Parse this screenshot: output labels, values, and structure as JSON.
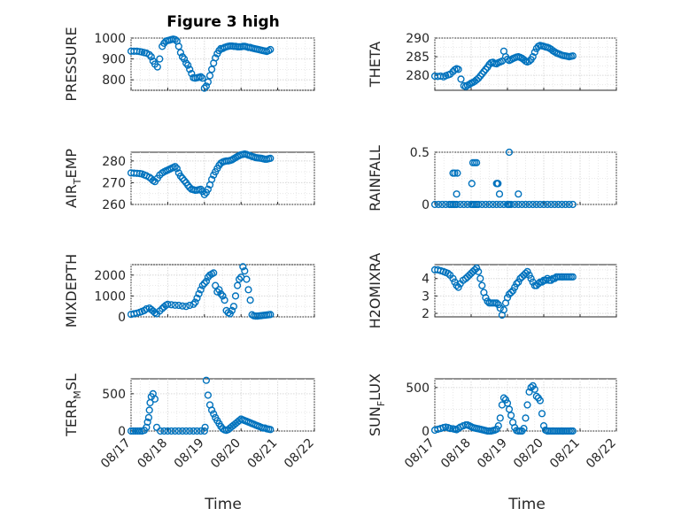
{
  "title": "Figure 3 high",
  "xlabel": "Time",
  "colors": {
    "marker": "#0072bd",
    "axis": "#262626",
    "grid": "#d9d9d9"
  },
  "chart_data": [
    {
      "id": "pressure",
      "type": "scatter",
      "title": "Figure 3 high",
      "ylabel": "PRESSURE",
      "ylim": [
        750,
        1000
      ],
      "yticks": [
        800,
        900,
        1000
      ],
      "xlim": [
        0,
        5
      ],
      "xticks": [
        "08/17",
        "08/18",
        "08/19",
        "08/20",
        "08/21",
        "08/22"
      ],
      "grid": true,
      "marker": "circle",
      "x": [
        0.0,
        0.08,
        0.16,
        0.24,
        0.3,
        0.36,
        0.42,
        0.5,
        0.55,
        0.6,
        0.65,
        0.72,
        0.78,
        0.85,
        0.9,
        0.95,
        1.0,
        1.05,
        1.1,
        1.15,
        1.2,
        1.25,
        1.3,
        1.35,
        1.4,
        1.45,
        1.5,
        1.55,
        1.6,
        1.65,
        1.7,
        1.75,
        1.8,
        1.85,
        1.9,
        1.95,
        2.0,
        2.05,
        2.1,
        2.15,
        2.2,
        2.25,
        2.3,
        2.35,
        2.4,
        2.45,
        2.5,
        2.55,
        2.6,
        2.65,
        2.7,
        2.75,
        2.8,
        2.85,
        2.9,
        2.95,
        3.0,
        3.05,
        3.1,
        3.15,
        3.2,
        3.25,
        3.3,
        3.35,
        3.4,
        3.45,
        3.5,
        3.55,
        3.6,
        3.65,
        3.7,
        3.75,
        3.8
      ],
      "y": [
        937,
        937,
        937,
        935,
        933,
        930,
        928,
        920,
        910,
        890,
        875,
        862,
        900,
        960,
        975,
        985,
        988,
        990,
        993,
        995,
        993,
        985,
        960,
        930,
        910,
        900,
        880,
        870,
        850,
        830,
        810,
        808,
        810,
        812,
        815,
        808,
        760,
        770,
        790,
        820,
        850,
        880,
        905,
        925,
        940,
        950,
        950,
        955,
        958,
        960,
        962,
        962,
        960,
        960,
        958,
        958,
        958,
        960,
        960,
        958,
        955,
        955,
        952,
        950,
        948,
        946,
        944,
        942,
        940,
        938,
        936,
        940,
        945
      ]
    },
    {
      "id": "theta",
      "type": "scatter",
      "ylabel": "THETA",
      "ylim": [
        276,
        290
      ],
      "yticks": [
        280,
        285,
        290
      ],
      "xlim": [
        0,
        5
      ],
      "xticks": [
        "08/17",
        "08/18",
        "08/19",
        "08/20",
        "08/21",
        "08/22"
      ],
      "grid": true,
      "marker": "circle",
      "x": [
        0.0,
        0.08,
        0.16,
        0.24,
        0.3,
        0.36,
        0.42,
        0.5,
        0.55,
        0.6,
        0.65,
        0.72,
        0.8,
        0.85,
        0.9,
        0.95,
        1.0,
        1.05,
        1.1,
        1.15,
        1.2,
        1.25,
        1.3,
        1.35,
        1.4,
        1.45,
        1.5,
        1.55,
        1.6,
        1.65,
        1.7,
        1.75,
        1.8,
        1.85,
        1.9,
        1.95,
        2.0,
        2.05,
        2.1,
        2.15,
        2.2,
        2.25,
        2.3,
        2.35,
        2.4,
        2.45,
        2.5,
        2.55,
        2.6,
        2.65,
        2.7,
        2.75,
        2.8,
        2.85,
        2.9,
        2.95,
        3.0,
        3.05,
        3.1,
        3.15,
        3.2,
        3.25,
        3.3,
        3.35,
        3.4,
        3.45,
        3.5,
        3.55,
        3.6,
        3.65,
        3.7,
        3.75,
        3.8
      ],
      "y": [
        279.8,
        279.7,
        279.8,
        279.6,
        279.9,
        280.1,
        280.3,
        281.0,
        281.5,
        281.8,
        281.6,
        279.0,
        277.2,
        277.0,
        277.3,
        277.6,
        277.9,
        278.1,
        278.4,
        278.8,
        279.2,
        279.8,
        280.4,
        281.0,
        281.6,
        282.2,
        282.9,
        283.4,
        283.5,
        283.2,
        283.1,
        283.4,
        283.6,
        283.8,
        286.5,
        285.0,
        284.3,
        284.0,
        284.2,
        284.5,
        284.7,
        284.9,
        285.0,
        284.8,
        284.6,
        284.2,
        283.8,
        283.6,
        283.8,
        284.2,
        285.0,
        286.2,
        287.2,
        287.8,
        288.0,
        287.9,
        287.8,
        287.6,
        287.5,
        287.3,
        287.0,
        286.6,
        286.3,
        286.0,
        285.8,
        285.6,
        285.4,
        285.3,
        285.2,
        285.1,
        285.0,
        285.1,
        285.2
      ]
    },
    {
      "id": "air_temp",
      "type": "scatter",
      "ylabel": "AIR_TEMP",
      "ylim": [
        260,
        284
      ],
      "yticks": [
        260,
        270,
        280
      ],
      "xlim": [
        0,
        5
      ],
      "xticks": [
        "08/17",
        "08/18",
        "08/19",
        "08/20",
        "08/21",
        "08/22"
      ],
      "grid": true,
      "marker": "circle",
      "x": [
        0.0,
        0.08,
        0.16,
        0.24,
        0.3,
        0.36,
        0.42,
        0.5,
        0.55,
        0.6,
        0.65,
        0.72,
        0.78,
        0.85,
        0.9,
        0.95,
        1.0,
        1.05,
        1.1,
        1.15,
        1.2,
        1.25,
        1.3,
        1.35,
        1.4,
        1.45,
        1.5,
        1.55,
        1.6,
        1.65,
        1.7,
        1.75,
        1.8,
        1.85,
        1.9,
        1.95,
        2.0,
        2.05,
        2.1,
        2.15,
        2.2,
        2.25,
        2.3,
        2.35,
        2.4,
        2.45,
        2.5,
        2.55,
        2.6,
        2.65,
        2.7,
        2.75,
        2.8,
        2.85,
        2.9,
        2.95,
        3.0,
        3.05,
        3.1,
        3.15,
        3.2,
        3.25,
        3.3,
        3.35,
        3.4,
        3.45,
        3.5,
        3.55,
        3.6,
        3.65,
        3.7,
        3.75,
        3.8
      ],
      "y": [
        274.5,
        274.4,
        274.3,
        274.2,
        274.0,
        273.6,
        273.2,
        272.5,
        271.8,
        271.0,
        270.5,
        272.0,
        273.5,
        274.5,
        275.0,
        275.4,
        275.8,
        276.2,
        276.6,
        277.0,
        277.4,
        276.5,
        274.5,
        273.0,
        272.0,
        271.0,
        270.0,
        268.8,
        267.8,
        267.0,
        266.8,
        266.5,
        266.6,
        266.8,
        267.0,
        266.0,
        264.5,
        265.5,
        267.0,
        269.0,
        271.5,
        273.5,
        275.0,
        276.5,
        278.0,
        279.0,
        279.5,
        279.8,
        280.0,
        280.0,
        280.2,
        280.5,
        281.0,
        281.5,
        282.0,
        282.4,
        282.8,
        283.0,
        283.2,
        283.0,
        282.6,
        282.4,
        282.0,
        281.8,
        281.5,
        281.4,
        281.3,
        281.2,
        281.0,
        280.8,
        280.8,
        281.0,
        281.2
      ]
    },
    {
      "id": "rainfall",
      "type": "scatter",
      "ylabel": "RAINFALL",
      "ylim": [
        0,
        0.5
      ],
      "yticks": [
        0,
        0.5
      ],
      "xlim": [
        0,
        5
      ],
      "xticks": [
        "08/17",
        "08/18",
        "08/19",
        "08/20",
        "08/21",
        "08/22"
      ],
      "grid": true,
      "marker": "circle",
      "x": [
        0.0,
        0.1,
        0.2,
        0.3,
        0.4,
        0.45,
        0.5,
        0.55,
        0.6,
        0.7,
        0.8,
        0.9,
        1.0,
        1.05,
        1.1,
        1.15,
        1.2,
        1.3,
        1.4,
        1.5,
        1.6,
        1.7,
        1.8,
        1.9,
        2.0,
        2.02,
        2.05,
        2.1,
        2.2,
        2.3,
        2.4,
        2.5,
        2.6,
        2.7,
        2.8,
        2.9,
        3.0,
        3.1,
        3.2,
        3.3,
        3.4,
        3.5,
        3.6,
        3.7,
        3.8,
        0.5,
        0.55,
        0.62,
        0.6,
        1.05,
        1.1,
        1.15,
        1.02,
        1.7,
        1.72,
        1.74,
        1.78,
        2.05,
        2.3
      ],
      "y": [
        0,
        0,
        0,
        0,
        0,
        0,
        0,
        0,
        0,
        0,
        0,
        0,
        0,
        0,
        0,
        0,
        0,
        0,
        0,
        0,
        0,
        0,
        0,
        0,
        0,
        0,
        0,
        0,
        0,
        0,
        0,
        0,
        0,
        0,
        0,
        0,
        0,
        0,
        0,
        0,
        0,
        0,
        0,
        0,
        0,
        0.3,
        0.3,
        0.3,
        0.1,
        0.4,
        0.4,
        0.4,
        0.2,
        0.2,
        0.2,
        0.2,
        0.1,
        0.5,
        0.1
      ]
    },
    {
      "id": "mixdepth",
      "type": "scatter",
      "ylabel": "MIXDEPTH",
      "ylim": [
        0,
        2500
      ],
      "yticks": [
        0,
        1000,
        2000
      ],
      "xlim": [
        0,
        5
      ],
      "xticks": [
        "08/17",
        "08/18",
        "08/19",
        "08/20",
        "08/21",
        "08/22"
      ],
      "grid": true,
      "marker": "circle",
      "x": [
        0.0,
        0.08,
        0.16,
        0.24,
        0.3,
        0.36,
        0.42,
        0.5,
        0.55,
        0.6,
        0.65,
        0.7,
        0.78,
        0.85,
        0.9,
        0.95,
        1.0,
        1.1,
        1.2,
        1.3,
        1.4,
        1.5,
        1.6,
        1.7,
        1.75,
        1.8,
        1.85,
        1.9,
        1.95,
        2.0,
        2.05,
        2.1,
        2.15,
        2.2,
        2.25,
        2.3,
        2.35,
        2.4,
        2.45,
        2.5,
        2.55,
        2.6,
        2.65,
        2.7,
        2.75,
        2.8,
        2.85,
        2.9,
        2.95,
        3.0,
        3.05,
        3.1,
        3.15,
        3.2,
        3.25,
        3.3,
        3.35,
        3.4,
        3.45,
        3.5,
        3.55,
        3.6,
        3.65,
        3.7,
        3.75,
        3.8
      ],
      "y": [
        120,
        150,
        180,
        220,
        260,
        300,
        380,
        420,
        350,
        280,
        200,
        150,
        280,
        400,
        480,
        550,
        600,
        580,
        560,
        550,
        520,
        500,
        550,
        600,
        700,
        900,
        1100,
        1300,
        1500,
        1600,
        1700,
        1900,
        2000,
        2050,
        2100,
        1500,
        1200,
        1300,
        1100,
        1000,
        800,
        300,
        200,
        150,
        300,
        500,
        1000,
        1500,
        1800,
        1900,
        2400,
        2200,
        1800,
        1300,
        800,
        100,
        50,
        40,
        40,
        50,
        60,
        70,
        80,
        90,
        100,
        110
      ]
    },
    {
      "id": "h2omixra",
      "type": "scatter",
      "ylabel": "H2OMIXRA",
      "ylim": [
        1.8,
        4.8
      ],
      "yticks": [
        2,
        3,
        4
      ],
      "xlim": [
        0,
        5
      ],
      "xticks": [
        "08/17",
        "08/18",
        "08/19",
        "08/20",
        "08/21",
        "08/22"
      ],
      "grid": true,
      "marker": "circle",
      "x": [
        0.0,
        0.08,
        0.16,
        0.24,
        0.3,
        0.36,
        0.42,
        0.5,
        0.55,
        0.6,
        0.65,
        0.7,
        0.78,
        0.85,
        0.9,
        0.95,
        1.0,
        1.05,
        1.1,
        1.15,
        1.2,
        1.25,
        1.3,
        1.35,
        1.4,
        1.45,
        1.5,
        1.55,
        1.6,
        1.65,
        1.7,
        1.75,
        1.8,
        1.85,
        1.9,
        1.95,
        2.0,
        2.05,
        2.1,
        2.15,
        2.2,
        2.25,
        2.3,
        2.35,
        2.4,
        2.45,
        2.5,
        2.55,
        2.6,
        2.65,
        2.7,
        2.75,
        2.8,
        2.85,
        2.9,
        2.95,
        3.0,
        3.05,
        3.1,
        3.15,
        3.2,
        3.25,
        3.3,
        3.35,
        3.4,
        3.45,
        3.5,
        3.55,
        3.6,
        3.65,
        3.7,
        3.75,
        3.8
      ],
      "y": [
        4.5,
        4.5,
        4.45,
        4.4,
        4.35,
        4.3,
        4.2,
        4.0,
        3.8,
        3.6,
        3.5,
        3.7,
        3.9,
        4.0,
        4.1,
        4.2,
        4.3,
        4.4,
        4.5,
        4.6,
        4.4,
        4.0,
        3.6,
        3.2,
        2.9,
        2.7,
        2.6,
        2.6,
        2.6,
        2.6,
        2.6,
        2.5,
        2.3,
        1.9,
        2.2,
        2.6,
        2.9,
        3.1,
        3.2,
        3.3,
        3.5,
        3.7,
        3.8,
        4.0,
        4.1,
        4.2,
        4.3,
        4.4,
        4.2,
        4.0,
        3.8,
        3.6,
        3.6,
        3.7,
        3.8,
        3.8,
        3.9,
        3.9,
        4.0,
        3.9,
        3.9,
        4.0,
        4.0,
        4.1,
        4.1,
        4.1,
        4.1,
        4.1,
        4.1,
        4.1,
        4.1,
        4.1,
        4.1
      ]
    },
    {
      "id": "terr_msl",
      "type": "scatter",
      "ylabel": "TERR_MSL",
      "ylim": [
        0,
        700
      ],
      "yticks": [
        0,
        500
      ],
      "xlim": [
        0,
        5
      ],
      "xticks": [
        "08/17",
        "08/18",
        "08/19",
        "08/20",
        "08/21",
        "08/22"
      ],
      "grid": true,
      "marker": "circle",
      "x": [
        0.0,
        0.06,
        0.12,
        0.18,
        0.24,
        0.3,
        0.36,
        0.42,
        0.45,
        0.48,
        0.5,
        0.52,
        0.55,
        0.6,
        0.65,
        0.7,
        0.8,
        0.9,
        1.0,
        1.1,
        1.2,
        1.3,
        1.4,
        1.5,
        1.6,
        1.7,
        1.8,
        1.9,
        2.0,
        2.02,
        2.05,
        2.1,
        2.15,
        2.2,
        2.25,
        2.3,
        2.35,
        2.4,
        2.45,
        2.5,
        2.55,
        2.6,
        2.65,
        2.7,
        2.75,
        2.8,
        2.85,
        2.9,
        2.95,
        3.0,
        3.05,
        3.1,
        3.15,
        3.2,
        3.25,
        3.3,
        3.35,
        3.4,
        3.45,
        3.5,
        3.55,
        3.6,
        3.65,
        3.7,
        3.75,
        3.8
      ],
      "y": [
        0,
        0,
        0,
        0,
        0,
        0,
        10,
        50,
        120,
        180,
        280,
        380,
        460,
        500,
        430,
        50,
        0,
        0,
        0,
        0,
        0,
        0,
        0,
        0,
        0,
        0,
        0,
        0,
        0,
        50,
        680,
        480,
        350,
        280,
        230,
        180,
        140,
        100,
        60,
        30,
        15,
        10,
        20,
        40,
        60,
        80,
        100,
        120,
        140,
        160,
        150,
        140,
        130,
        120,
        110,
        100,
        90,
        80,
        70,
        60,
        50,
        40,
        40,
        30,
        25,
        20
      ]
    },
    {
      "id": "sun_flux",
      "type": "scatter",
      "ylabel": "SUN_FLUX",
      "ylim": [
        0,
        600
      ],
      "yticks": [
        0,
        500
      ],
      "xlim": [
        0,
        5
      ],
      "xticks": [
        "08/17",
        "08/18",
        "08/19",
        "08/20",
        "08/21",
        "08/22"
      ],
      "grid": true,
      "marker": "circle",
      "x": [
        0.0,
        0.08,
        0.16,
        0.24,
        0.3,
        0.36,
        0.42,
        0.5,
        0.55,
        0.6,
        0.65,
        0.7,
        0.78,
        0.85,
        0.9,
        0.95,
        1.0,
        1.05,
        1.1,
        1.15,
        1.2,
        1.25,
        1.3,
        1.35,
        1.4,
        1.45,
        1.5,
        1.55,
        1.6,
        1.65,
        1.7,
        1.75,
        1.8,
        1.85,
        1.9,
        1.95,
        2.0,
        2.05,
        2.1,
        2.15,
        2.2,
        2.25,
        2.3,
        2.35,
        2.4,
        2.45,
        2.5,
        2.55,
        2.6,
        2.65,
        2.7,
        2.75,
        2.8,
        2.85,
        2.9,
        2.95,
        3.0,
        3.05,
        3.1,
        3.15,
        3.2,
        3.25,
        3.3,
        3.35,
        3.4,
        3.45,
        3.5,
        3.55,
        3.6,
        3.65,
        3.7,
        3.75,
        3.8
      ],
      "y": [
        10,
        20,
        30,
        40,
        45,
        40,
        30,
        25,
        20,
        15,
        30,
        45,
        60,
        70,
        70,
        60,
        50,
        40,
        35,
        30,
        25,
        20,
        15,
        10,
        5,
        0,
        0,
        0,
        5,
        10,
        20,
        60,
        150,
        300,
        380,
        360,
        320,
        250,
        180,
        100,
        40,
        5,
        0,
        0,
        0,
        30,
        150,
        300,
        450,
        500,
        520,
        480,
        400,
        380,
        350,
        200,
        60,
        10,
        0,
        0,
        0,
        0,
        0,
        0,
        0,
        0,
        0,
        0,
        0,
        0,
        0,
        0,
        0
      ]
    }
  ]
}
